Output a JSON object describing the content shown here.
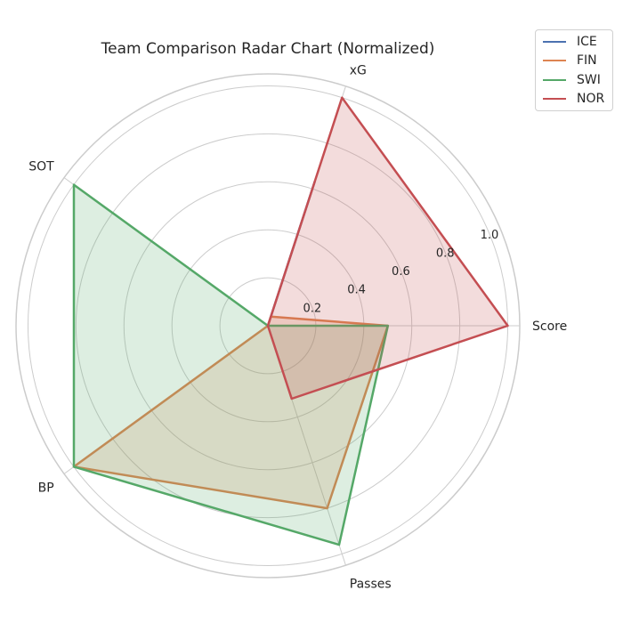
{
  "chart_data": {
    "type": "radar",
    "title": "Team Comparison Radar Chart (Normalized)",
    "axes": [
      "Score",
      "xG",
      "SOT",
      "BP",
      "Passes"
    ],
    "radial_ticks": [
      "0.2",
      "0.4",
      "0.6",
      "0.8",
      "1.0"
    ],
    "radial_tick_values": [
      0.2,
      0.4,
      0.6,
      0.8,
      1.0
    ],
    "rlim": [
      0,
      1.05
    ],
    "grid": true,
    "legend_position": "upper-right",
    "series": [
      {
        "name": "ICE",
        "color": "#4c72b0",
        "values": [
          0.0,
          0.63,
          0.0,
          0.0,
          0.0
        ]
      },
      {
        "name": "FIN",
        "color": "#dd8452",
        "values": [
          0.5,
          0.04,
          0.0,
          1.0,
          0.8
        ]
      },
      {
        "name": "SWI",
        "color": "#55a868",
        "values": [
          0.5,
          0.0,
          1.0,
          1.0,
          0.96
        ]
      },
      {
        "name": "NOR",
        "color": "#c44e52",
        "values": [
          1.0,
          1.0,
          0.0,
          0.0,
          0.32
        ]
      }
    ]
  }
}
